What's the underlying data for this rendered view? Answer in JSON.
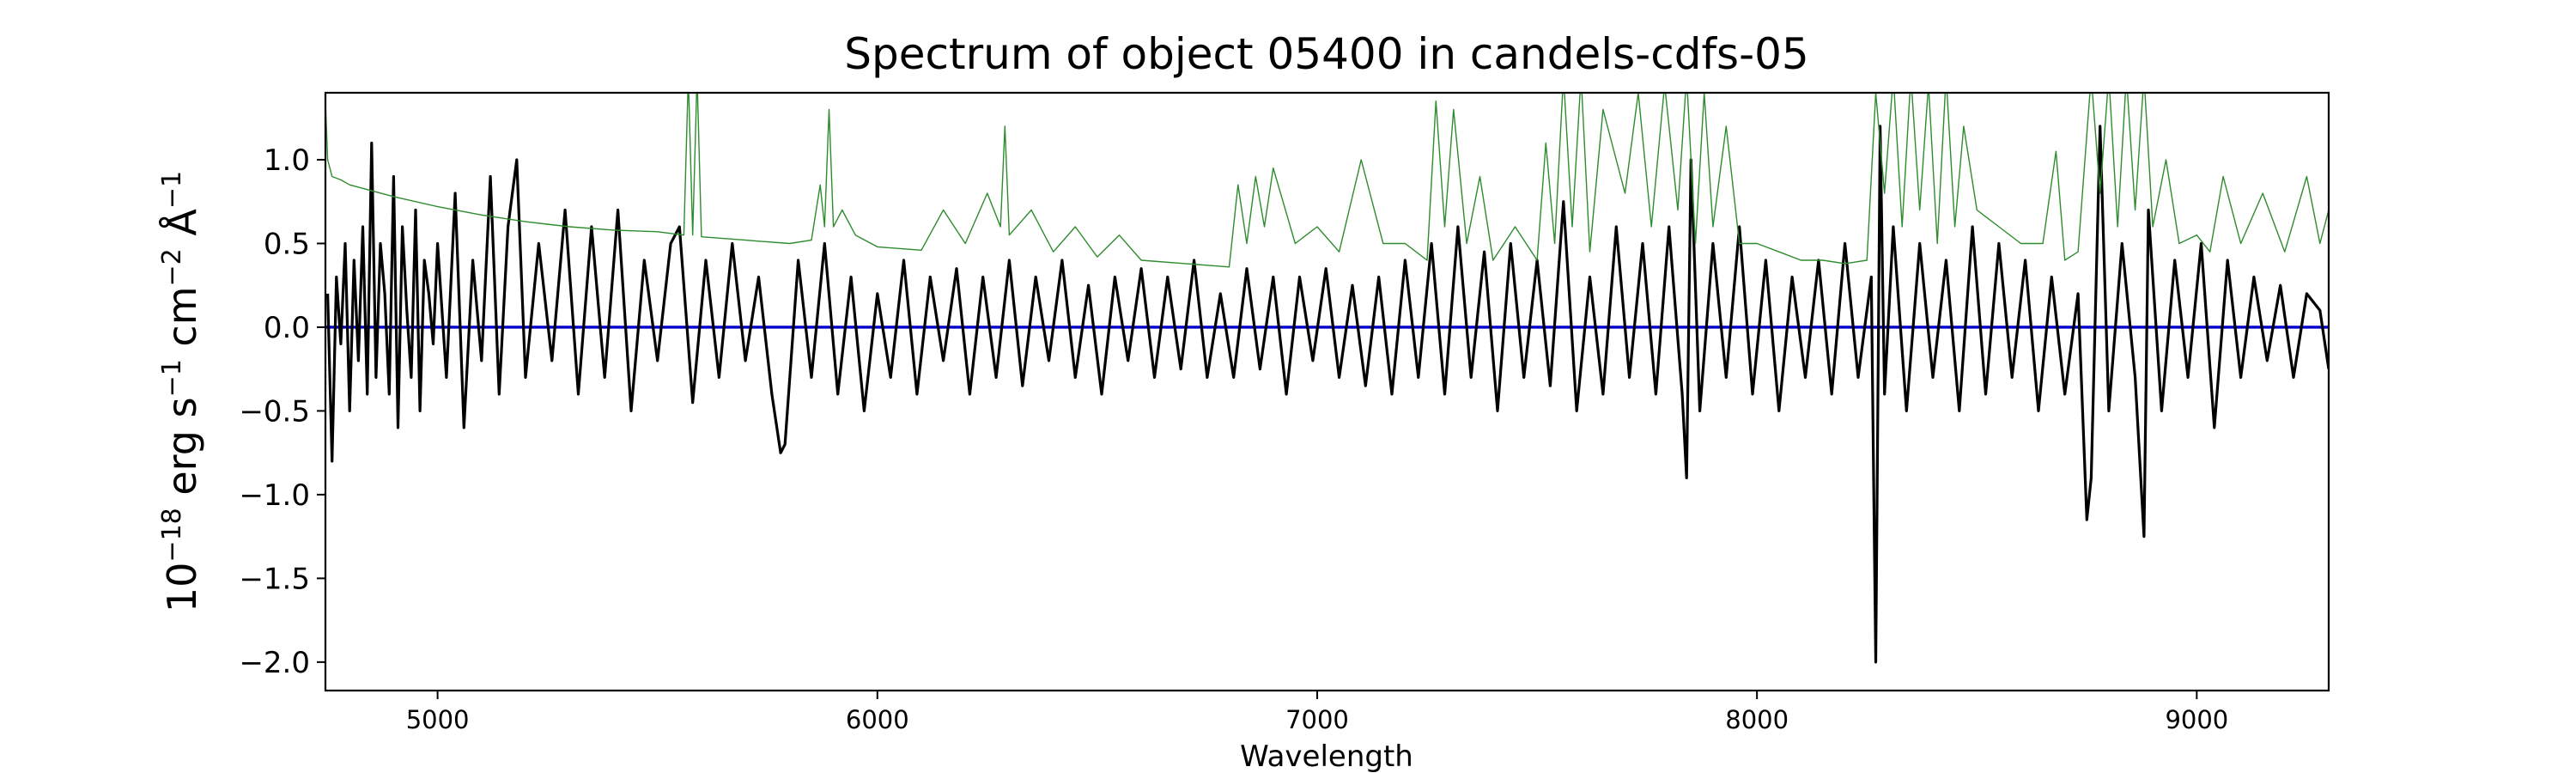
{
  "chart_data": {
    "type": "line",
    "title": "Spectrum of object 05400 in candels-cdfs-05",
    "xlabel": "Wavelength",
    "ylabel": "10−18 erg s−1 cm−2 Å−1",
    "xlim": [
      4745,
      9300
    ],
    "ylim": [
      -2.17,
      1.4
    ],
    "xticks": [
      5000,
      6000,
      7000,
      8000,
      9000
    ],
    "yticks": [
      1.0,
      0.5,
      0.0,
      -0.5,
      -1.0,
      -1.5,
      -2.0
    ],
    "xtick_labels": [
      "5000",
      "6000",
      "7000",
      "8000",
      "9000"
    ],
    "ytick_labels": [
      "1.0",
      "0.5",
      "0.0",
      "−0.5",
      "−1.0",
      "−1.5",
      "−2.0"
    ],
    "grid": false,
    "series": [
      {
        "color": "#000000",
        "x": [
          4750,
          4760,
          4770,
          4780,
          4790,
          4800,
          4810,
          4820,
          4830,
          4840,
          4850,
          4860,
          4870,
          4880,
          4890,
          4900,
          4910,
          4920,
          4930,
          4940,
          4950,
          4960,
          4970,
          4980,
          4990,
          5000,
          5020,
          5040,
          5060,
          5080,
          5100,
          5120,
          5140,
          5160,
          5180,
          5200,
          5230,
          5260,
          5290,
          5320,
          5350,
          5380,
          5410,
          5440,
          5470,
          5500,
          5530,
          5550,
          5580,
          5610,
          5640,
          5670,
          5700,
          5730,
          5760,
          5780,
          5790,
          5820,
          5850,
          5880,
          5910,
          5940,
          5970,
          6000,
          6030,
          6060,
          6090,
          6120,
          6150,
          6180,
          6210,
          6240,
          6270,
          6300,
          6330,
          6360,
          6390,
          6420,
          6450,
          6480,
          6510,
          6540,
          6570,
          6600,
          6630,
          6660,
          6690,
          6720,
          6750,
          6780,
          6810,
          6840,
          6870,
          6900,
          6930,
          6960,
          6990,
          7020,
          7050,
          7080,
          7110,
          7140,
          7170,
          7200,
          7230,
          7260,
          7290,
          7320,
          7350,
          7380,
          7410,
          7440,
          7470,
          7500,
          7530,
          7560,
          7590,
          7620,
          7650,
          7680,
          7710,
          7740,
          7770,
          7800,
          7830,
          7840,
          7850,
          7870,
          7900,
          7930,
          7960,
          7990,
          8020,
          8050,
          8080,
          8110,
          8140,
          8170,
          8200,
          8230,
          8260,
          8270,
          8280,
          8290,
          8310,
          8340,
          8370,
          8400,
          8430,
          8460,
          8490,
          8520,
          8550,
          8580,
          8610,
          8640,
          8670,
          8700,
          8730,
          8750,
          8760,
          8780,
          8800,
          8830,
          8860,
          8880,
          8890,
          8920,
          8950,
          8980,
          9010,
          9040,
          9070,
          9100,
          9130,
          9160,
          9190,
          9220,
          9250,
          9280,
          9300
        ],
        "y": [
          0.2,
          -0.8,
          0.3,
          -0.1,
          0.5,
          -0.5,
          0.4,
          -0.2,
          0.6,
          -0.4,
          1.1,
          -0.3,
          0.5,
          0.2,
          -0.4,
          0.9,
          -0.6,
          0.6,
          0.1,
          -0.3,
          0.7,
          -0.5,
          0.4,
          0.2,
          -0.1,
          0.5,
          -0.3,
          0.8,
          -0.6,
          0.4,
          -0.2,
          0.9,
          -0.4,
          0.6,
          1.0,
          -0.3,
          0.5,
          -0.2,
          0.7,
          -0.4,
          0.6,
          -0.3,
          0.7,
          -0.5,
          0.4,
          -0.2,
          0.5,
          0.6,
          -0.45,
          0.4,
          -0.3,
          0.5,
          -0.2,
          0.3,
          -0.4,
          -0.75,
          -0.7,
          0.4,
          -0.3,
          0.5,
          -0.4,
          0.3,
          -0.5,
          0.2,
          -0.3,
          0.4,
          -0.4,
          0.3,
          -0.2,
          0.35,
          -0.4,
          0.3,
          -0.3,
          0.4,
          -0.35,
          0.3,
          -0.2,
          0.4,
          -0.3,
          0.25,
          -0.4,
          0.3,
          -0.2,
          0.35,
          -0.3,
          0.3,
          -0.25,
          0.4,
          -0.3,
          0.2,
          -0.3,
          0.35,
          -0.25,
          0.3,
          -0.4,
          0.3,
          -0.2,
          0.35,
          -0.3,
          0.25,
          -0.35,
          0.3,
          -0.4,
          0.4,
          -0.3,
          0.5,
          -0.4,
          0.6,
          -0.3,
          0.45,
          -0.5,
          0.5,
          -0.3,
          0.4,
          -0.35,
          0.75,
          -0.5,
          0.3,
          -0.4,
          0.6,
          -0.3,
          0.5,
          -0.4,
          0.6,
          -0.4,
          -0.9,
          1.0,
          -0.5,
          0.5,
          -0.3,
          0.6,
          -0.4,
          0.4,
          -0.5,
          0.3,
          -0.3,
          0.4,
          -0.4,
          0.5,
          -0.3,
          0.3,
          -2.0,
          1.2,
          -0.4,
          0.6,
          -0.5,
          0.5,
          -0.3,
          0.4,
          -0.5,
          0.6,
          -0.4,
          0.5,
          -0.3,
          0.4,
          -0.5,
          0.3,
          -0.4,
          0.2,
          -1.15,
          -0.9,
          1.2,
          -0.5,
          0.5,
          -0.3,
          -1.25,
          0.7,
          -0.5,
          0.4,
          -0.3,
          0.5,
          -0.6,
          0.4,
          -0.3,
          0.3,
          -0.2,
          0.25,
          -0.3,
          0.2,
          0.1,
          -0.25
        ]
      },
      {
        "color": "#2e8b2e",
        "x": [
          4745,
          4750,
          4760,
          4780,
          4800,
          4900,
          5000,
          5100,
          5200,
          5300,
          5400,
          5500,
          5560,
          5570,
          5580,
          5590,
          5600,
          5700,
          5800,
          5850,
          5870,
          5880,
          5890,
          5900,
          5920,
          5950,
          6000,
          6100,
          6150,
          6200,
          6250,
          6280,
          6290,
          6300,
          6350,
          6400,
          6450,
          6500,
          6550,
          6600,
          6700,
          6800,
          6820,
          6840,
          6860,
          6880,
          6900,
          6950,
          7000,
          7050,
          7100,
          7150,
          7200,
          7250,
          7270,
          7290,
          7310,
          7340,
          7370,
          7400,
          7450,
          7500,
          7520,
          7540,
          7560,
          7580,
          7600,
          7620,
          7650,
          7700,
          7730,
          7760,
          7790,
          7820,
          7840,
          7860,
          7880,
          7900,
          7930,
          7960,
          8000,
          8050,
          8100,
          8150,
          8200,
          8250,
          8270,
          8290,
          8310,
          8330,
          8350,
          8370,
          8390,
          8410,
          8430,
          8450,
          8470,
          8500,
          8550,
          8600,
          8650,
          8680,
          8700,
          8730,
          8760,
          8780,
          8800,
          8820,
          8840,
          8860,
          8880,
          8900,
          8930,
          8960,
          9000,
          9030,
          9060,
          9100,
          9150,
          9200,
          9250,
          9280,
          9300
        ],
        "y": [
          1.35,
          1.0,
          0.9,
          0.88,
          0.85,
          0.78,
          0.72,
          0.67,
          0.63,
          0.6,
          0.58,
          0.57,
          0.55,
          1.5,
          0.55,
          1.5,
          0.54,
          0.52,
          0.5,
          0.52,
          0.85,
          0.6,
          1.3,
          0.6,
          0.7,
          0.55,
          0.48,
          0.46,
          0.7,
          0.5,
          0.8,
          0.6,
          1.2,
          0.55,
          0.7,
          0.45,
          0.6,
          0.42,
          0.55,
          0.4,
          0.38,
          0.36,
          0.85,
          0.5,
          0.9,
          0.6,
          0.95,
          0.5,
          0.6,
          0.45,
          1.0,
          0.5,
          0.5,
          0.4,
          1.35,
          0.6,
          1.3,
          0.5,
          0.9,
          0.4,
          0.6,
          0.4,
          1.1,
          0.5,
          1.5,
          0.6,
          1.5,
          0.45,
          1.3,
          0.8,
          1.4,
          0.6,
          1.45,
          0.7,
          1.5,
          0.5,
          1.4,
          0.6,
          1.2,
          0.5,
          0.5,
          0.45,
          0.4,
          0.4,
          0.38,
          0.4,
          1.4,
          0.8,
          1.5,
          0.6,
          1.5,
          0.7,
          1.45,
          0.5,
          1.5,
          0.6,
          1.2,
          0.7,
          0.6,
          0.5,
          0.5,
          1.05,
          0.4,
          0.45,
          1.5,
          0.8,
          1.5,
          0.6,
          1.5,
          0.7,
          1.5,
          0.6,
          1.0,
          0.5,
          0.55,
          0.45,
          0.9,
          0.5,
          0.8,
          0.45,
          0.9,
          0.5,
          0.7
        ]
      },
      {
        "color": "#0000cc",
        "x": [
          4745,
          9300
        ],
        "y": [
          0.0,
          0.0
        ]
      }
    ]
  }
}
